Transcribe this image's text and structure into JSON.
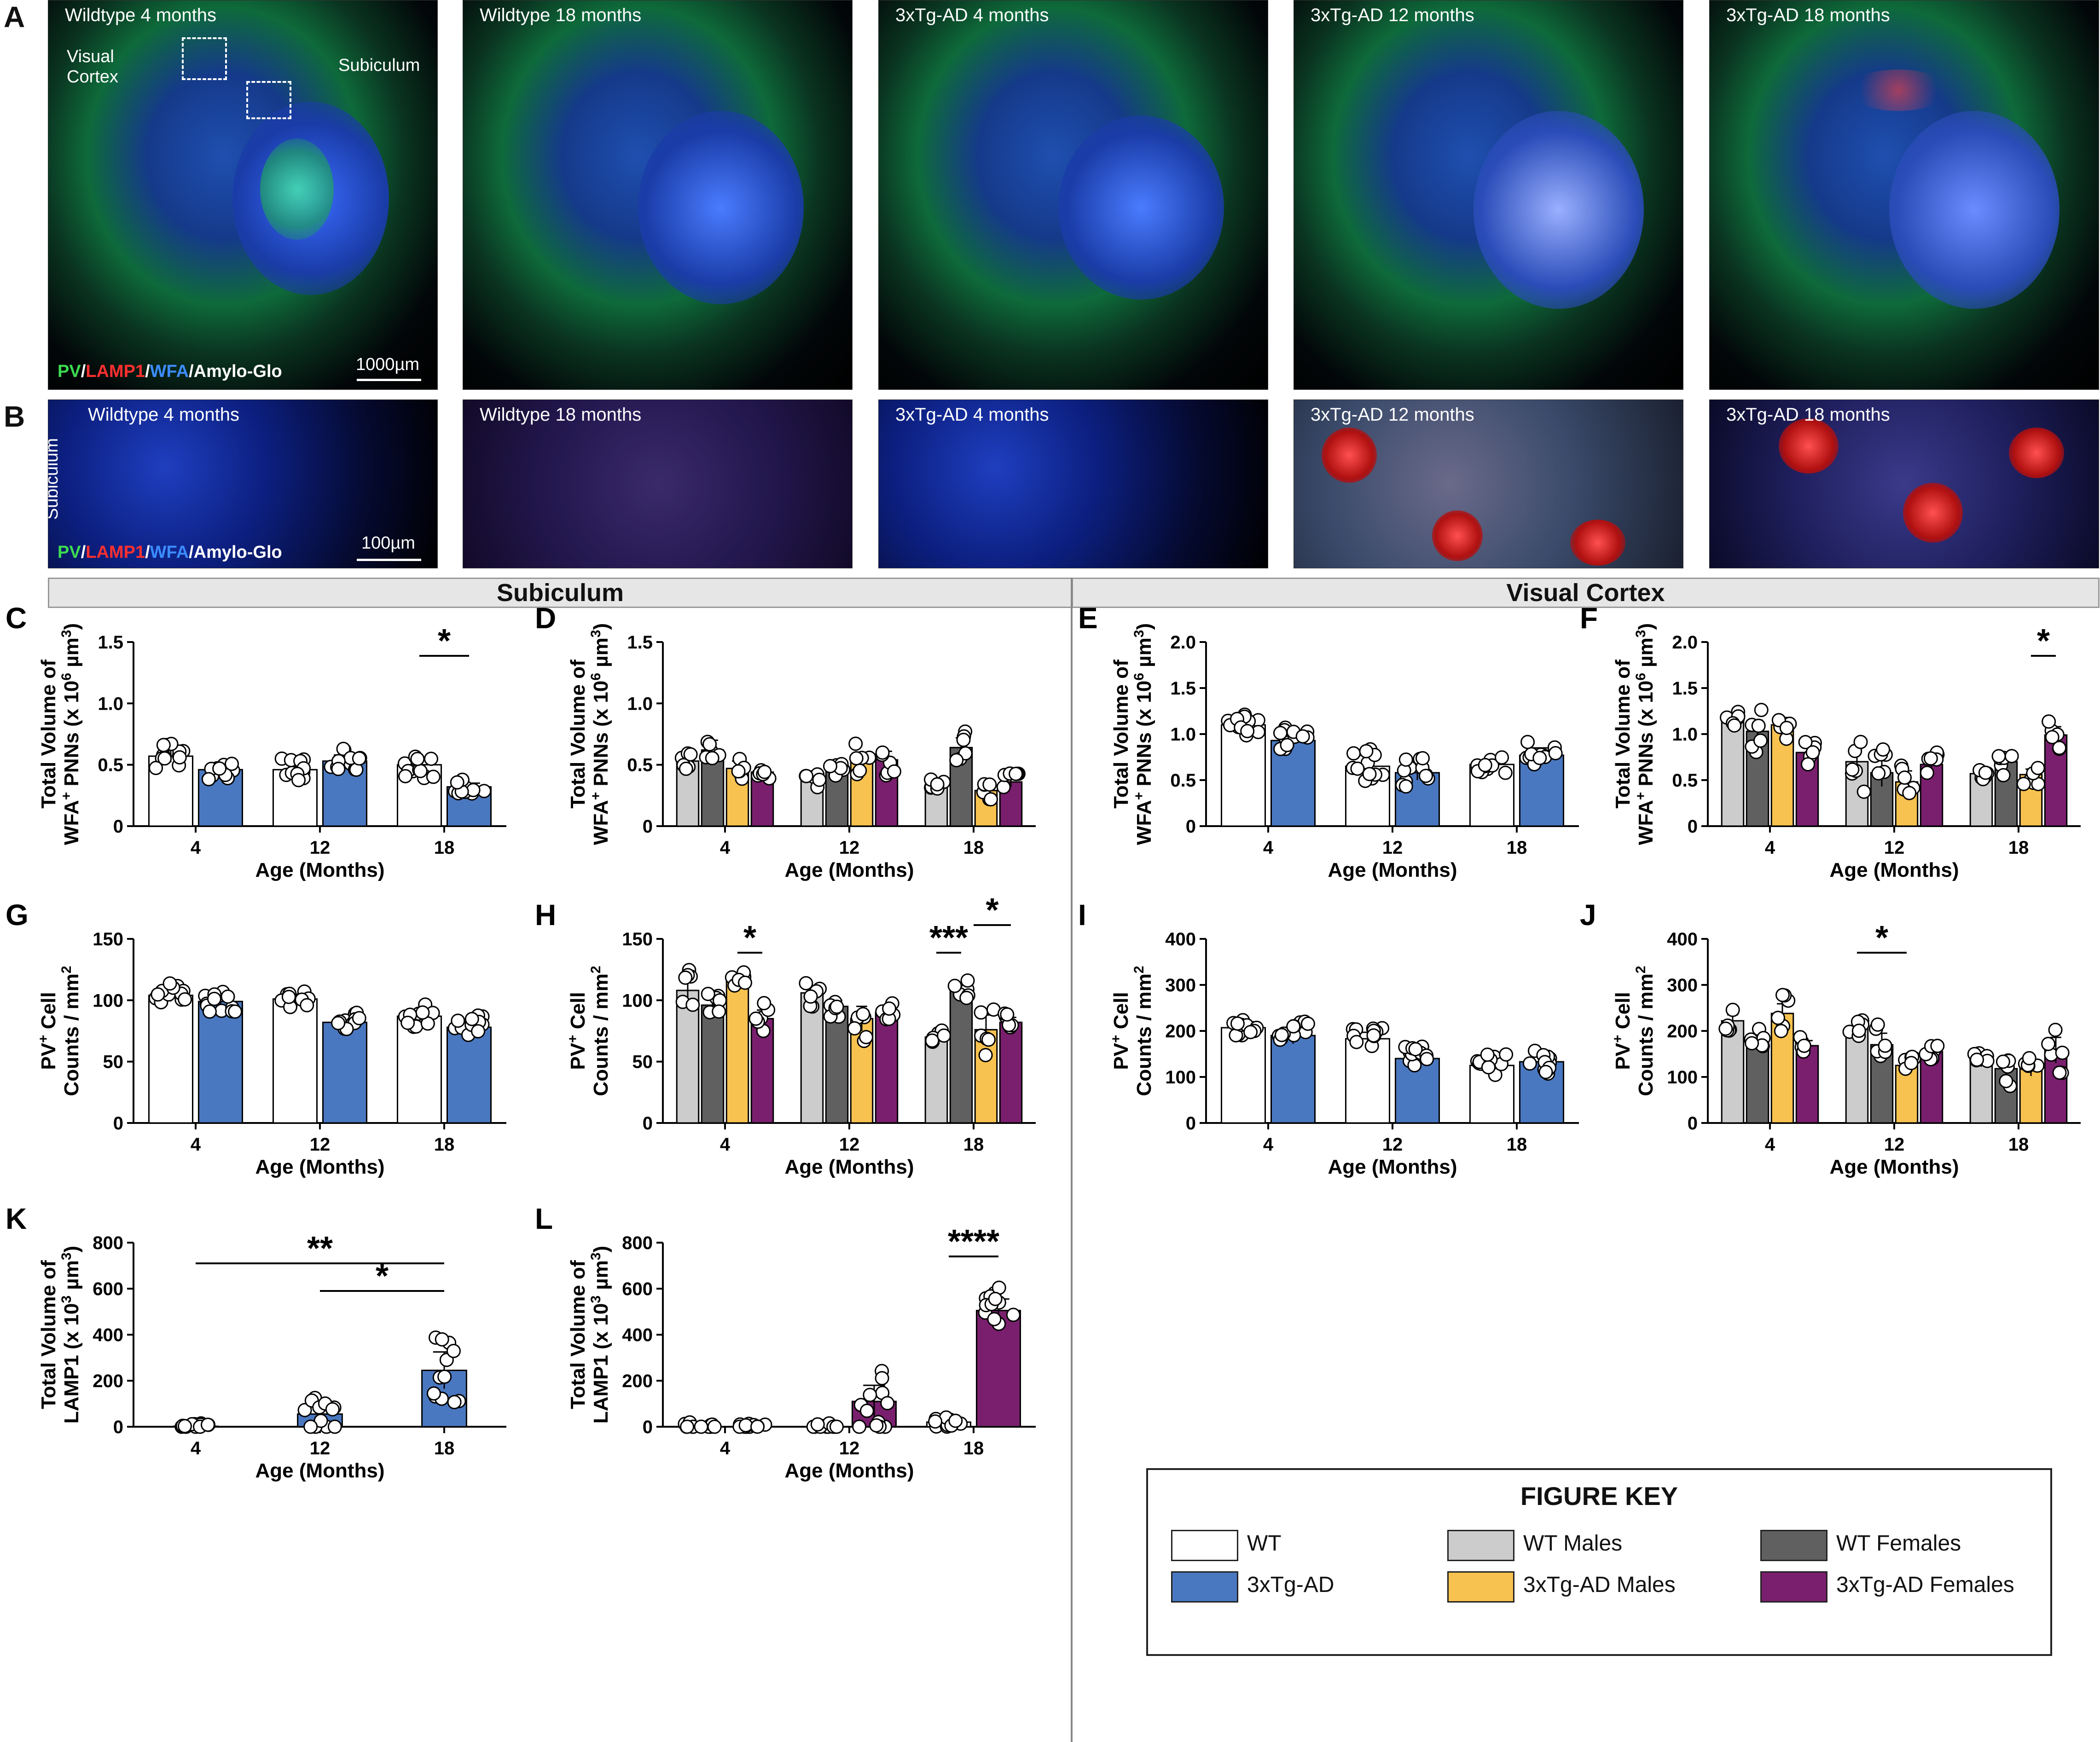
{
  "panel_letters": {
    "A": "A",
    "B": "B",
    "C": "C",
    "D": "D",
    "E": "E",
    "F": "F",
    "G": "G",
    "H": "H",
    "I": "I",
    "J": "J",
    "K": "K",
    "L": "L"
  },
  "row_a": {
    "labels": [
      "Wildtype 4 months",
      "Wildtype 18 months",
      "3xTg-AD 4 months",
      "3xTg-AD 12 months",
      "3xTg-AD 18 months"
    ],
    "annot_visual_cortex": "Visual Cortex",
    "annot_subiculum": "Subiculum",
    "stain_pv": "PV",
    "stain_lamp1": "LAMP1",
    "stain_wfa": "WFA",
    "stain_amylo": "Amylo-Glo",
    "sep": "/",
    "scale": "1000µm"
  },
  "row_b": {
    "labels": [
      "Wildtype 4 months",
      "Wildtype 18 months",
      "3xTg-AD 4 months",
      "3xTg-AD 12 months",
      "3xTg-AD 18 months"
    ],
    "side_label": "Subiculum",
    "scale": "100µm"
  },
  "regions": {
    "left": "Subiculum",
    "right": "Visual Cortex"
  },
  "colors": {
    "wt": "#ffffff",
    "ad": "#4a78c0",
    "wt_m": "#cccccc",
    "wt_f": "#606060",
    "ad_m": "#f7c24f",
    "ad_f": "#7a1f6e"
  },
  "figure_key": {
    "title": "FIGURE KEY",
    "items": [
      {
        "label": "WT",
        "color": "#ffffff"
      },
      {
        "label": "WT Males",
        "color": "#cccccc"
      },
      {
        "label": "WT Females",
        "color": "#606060"
      },
      {
        "label": "3xTg-AD",
        "color": "#4a78c0"
      },
      {
        "label": "3xTg-AD Males",
        "color": "#f7c24f"
      },
      {
        "label": "3xTg-AD Females",
        "color": "#7a1f6e"
      }
    ]
  },
  "chart_data": [
    {
      "id": "C",
      "type": "bar",
      "ylabel_lines": [
        "Total Volume of",
        "WFA+ PNNs (x 10^6 µm^3)"
      ],
      "xlabel": "Age (Months)",
      "categories": [
        "4",
        "12",
        "18"
      ],
      "ylim": [
        0,
        1.5
      ],
      "yticks": [
        "0",
        "0.5",
        "1.0",
        "1.5"
      ],
      "series": [
        {
          "key": "wt",
          "values": [
            0.57,
            0.46,
            0.5
          ],
          "err": [
            0.05,
            0.05,
            0.06
          ]
        },
        {
          "key": "ad",
          "values": [
            0.46,
            0.53,
            0.32
          ],
          "err": [
            0.04,
            0.05,
            0.03
          ]
        }
      ],
      "sig": [
        {
          "text": "*",
          "g": 2,
          "from": 0,
          "to": 1
        }
      ]
    },
    {
      "id": "D",
      "type": "bar",
      "ylabel_lines": [
        "Total Volume of",
        "WFA+ PNNs (x 10^6 µm^3)"
      ],
      "xlabel": "Age (Months)",
      "categories": [
        "4",
        "12",
        "18"
      ],
      "ylim": [
        0,
        1.5
      ],
      "yticks": [
        "0",
        "0.5",
        "1.0",
        "1.5"
      ],
      "series": [
        {
          "key": "wt_m",
          "values": [
            0.53,
            0.4,
            0.33
          ],
          "err": [
            0.05,
            0.05,
            0.03
          ]
        },
        {
          "key": "wt_f",
          "values": [
            0.62,
            0.49,
            0.64
          ],
          "err": [
            0.08,
            0.05,
            0.08
          ]
        },
        {
          "key": "ad_m",
          "values": [
            0.47,
            0.52,
            0.29
          ],
          "err": [
            0.06,
            0.08,
            0.04
          ]
        },
        {
          "key": "ad_f",
          "values": [
            0.44,
            0.54,
            0.36
          ],
          "err": [
            0.04,
            0.07,
            0.04
          ]
        }
      ],
      "sig": []
    },
    {
      "id": "E",
      "type": "bar",
      "ylabel_lines": [
        "Total Volume of",
        "WFA+ PNNs (x 10^6 µm^3)"
      ],
      "xlabel": "Age (Months)",
      "categories": [
        "4",
        "12",
        "18"
      ],
      "ylim": [
        0,
        2.0
      ],
      "yticks": [
        "0",
        "0.5",
        "1.0",
        "1.5",
        "2.0"
      ],
      "series": [
        {
          "key": "wt",
          "values": [
            1.1,
            0.65,
            0.67
          ],
          "err": [
            0.06,
            0.12,
            0.05
          ]
        },
        {
          "key": "ad",
          "values": [
            0.93,
            0.58,
            0.77
          ],
          "err": [
            0.07,
            0.08,
            0.08
          ]
        }
      ],
      "sig": []
    },
    {
      "id": "F",
      "type": "bar",
      "ylabel_lines": [
        "Total Volume of",
        "WFA+ PNNs (x 10^6 µm^3)"
      ],
      "xlabel": "Age (Months)",
      "categories": [
        "4",
        "12",
        "18"
      ],
      "ylim": [
        0,
        2.0
      ],
      "yticks": [
        "0",
        "0.5",
        "1.0",
        "1.5",
        "2.0"
      ],
      "series": [
        {
          "key": "wt_m",
          "values": [
            1.17,
            0.7,
            0.57
          ],
          "err": [
            0.06,
            0.18,
            0.03
          ]
        },
        {
          "key": "wt_f",
          "values": [
            1.03,
            0.58,
            0.7
          ],
          "err": [
            0.12,
            0.15,
            0.08
          ]
        },
        {
          "key": "ad_m",
          "values": [
            1.1,
            0.48,
            0.56
          ],
          "err": [
            0.08,
            0.12,
            0.06
          ]
        },
        {
          "key": "ad_f",
          "values": [
            0.8,
            0.67,
            0.99
          ],
          "err": [
            0.07,
            0.08,
            0.09
          ]
        }
      ],
      "sig": [
        {
          "text": "*",
          "g": 2,
          "from": 2,
          "to": 3
        }
      ]
    },
    {
      "id": "G",
      "type": "bar",
      "ylabel_lines": [
        "PV+ Cell",
        "Counts / mm^2"
      ],
      "xlabel": "Age (Months)",
      "categories": [
        "4",
        "12",
        "18"
      ],
      "ylim": [
        0,
        150
      ],
      "yticks": [
        "0",
        "50",
        "100",
        "150"
      ],
      "series": [
        {
          "key": "wt",
          "values": [
            104,
            101,
            87
          ],
          "err": [
            5,
            4,
            5
          ]
        },
        {
          "key": "ad",
          "values": [
            99,
            82,
            78
          ],
          "err": [
            5,
            4,
            5
          ]
        }
      ],
      "sig": []
    },
    {
      "id": "H",
      "type": "bar",
      "ylabel_lines": [
        "PV+ Cell",
        "Counts / mm^2"
      ],
      "xlabel": "Age (Months)",
      "categories": [
        "4",
        "12",
        "18"
      ],
      "ylim": [
        0,
        150
      ],
      "yticks": [
        "0",
        "50",
        "100",
        "150"
      ],
      "series": [
        {
          "key": "wt_m",
          "values": [
            108,
            106,
            70
          ],
          "err": [
            9,
            6,
            4
          ]
        },
        {
          "key": "wt_f",
          "values": [
            96,
            95,
            108
          ],
          "err": [
            6,
            5,
            5
          ]
        },
        {
          "key": "ad_m",
          "values": [
            116,
            85,
            76
          ],
          "err": [
            4,
            10,
            12
          ]
        },
        {
          "key": "ad_f",
          "values": [
            85,
            90,
            82
          ],
          "err": [
            7,
            4,
            4
          ]
        }
      ],
      "sig": [
        {
          "text": "*",
          "g": 0,
          "from": 2,
          "to": 3
        },
        {
          "text": "***",
          "g": 2,
          "from": 0,
          "to": 1
        },
        {
          "text": "*",
          "g": 2,
          "from": 1.5,
          "to": 3,
          "high": true
        }
      ]
    },
    {
      "id": "I",
      "type": "bar",
      "ylabel_lines": [
        "PV+ Cell",
        "Counts / mm^2"
      ],
      "xlabel": "Age (Months)",
      "categories": [
        "4",
        "12",
        "18"
      ],
      "ylim": [
        0,
        400
      ],
      "yticks": [
        "0",
        "100",
        "200",
        "300",
        "400"
      ],
      "series": [
        {
          "key": "wt",
          "values": [
            207,
            183,
            125
          ],
          "err": [
            9,
            14,
            12
          ]
        },
        {
          "key": "ad",
          "values": [
            190,
            140,
            133
          ],
          "err": [
            18,
            13,
            14
          ]
        }
      ],
      "sig": []
    },
    {
      "id": "J",
      "type": "bar",
      "ylabel_lines": [
        "PV+ Cell",
        "Counts / mm^2"
      ],
      "xlabel": "Age (Months)",
      "categories": [
        "4",
        "12",
        "18"
      ],
      "ylim": [
        0,
        400
      ],
      "yticks": [
        "0",
        "100",
        "200",
        "300",
        "400"
      ],
      "series": [
        {
          "key": "wt_m",
          "values": [
            222,
            205,
            134
          ],
          "err": [
            13,
            9,
            12
          ]
        },
        {
          "key": "wt_f",
          "values": [
            183,
            170,
            118
          ],
          "err": [
            11,
            25,
            21
          ]
        },
        {
          "key": "ad_m",
          "values": [
            238,
            125,
            120
          ],
          "err": [
            21,
            15,
            18
          ]
        },
        {
          "key": "ad_f",
          "values": [
            168,
            155,
            158
          ],
          "err": [
            11,
            16,
            28
          ]
        }
      ],
      "sig": [
        {
          "text": "*",
          "g": 1,
          "from": 0,
          "to": 2
        }
      ]
    },
    {
      "id": "K",
      "type": "bar",
      "ylabel_lines": [
        "Total Volume of",
        "LAMP1 (x 10^3 µm^3)"
      ],
      "xlabel": "Age (Months)",
      "categories": [
        "4",
        "12",
        "18"
      ],
      "ylim": [
        0,
        800
      ],
      "yticks": [
        "0",
        "200",
        "400",
        "600",
        "800"
      ],
      "series": [
        {
          "key": "ad",
          "values": [
            2,
            55,
            245
          ],
          "err": [
            1,
            40,
            80
          ]
        }
      ],
      "sig": [
        {
          "text": "**",
          "g": 0,
          "g2": 2,
          "y": 710
        },
        {
          "text": "*",
          "g": 1,
          "g2": 2,
          "y": 590
        }
      ]
    },
    {
      "id": "L",
      "type": "bar",
      "ylabel_lines": [
        "Total Volume of",
        "LAMP1 (x 10^3 µm^3)"
      ],
      "xlabel": "Age (Months)",
      "categories": [
        "4",
        "12",
        "18"
      ],
      "ylim": [
        0,
        800
      ],
      "yticks": [
        "0",
        "200",
        "400",
        "600",
        "800"
      ],
      "series": [
        {
          "key": "wt",
          "values": [
            0,
            0,
            20
          ],
          "err": [
            0,
            0,
            10
          ]
        },
        {
          "key": "ad_f",
          "values": [
            0,
            110,
            505
          ],
          "err": [
            0,
            70,
            50
          ]
        }
      ],
      "sig": [
        {
          "text": "****",
          "g": 2,
          "from": 0,
          "to": 1
        }
      ]
    }
  ]
}
